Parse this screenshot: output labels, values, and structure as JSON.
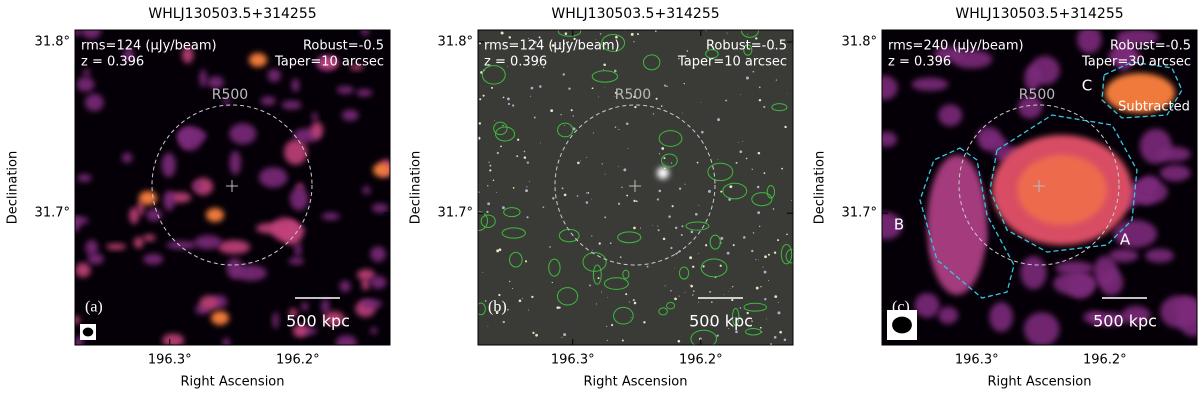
{
  "chart_data": [
    {
      "type": "image",
      "title": "WHLJ130503.5+314255",
      "xlabel": "Right Ascension",
      "ylabel": "Declination",
      "xlim": [
        196.374,
        196.128
      ],
      "ylim": [
        31.623,
        31.807
      ],
      "xticks": [
        {
          "value": 196.3,
          "label": "196.3°"
        },
        {
          "value": 196.2,
          "label": "196.2°"
        }
      ],
      "yticks": [
        {
          "value": 31.7,
          "label": "31.7°"
        },
        {
          "value": 31.8,
          "label": "31.8°"
        }
      ],
      "annotations": {
        "rms": "rms=124 (μJy/beam)",
        "redshift": "z = 0.396",
        "robust": "Robust=-0.5",
        "taper": "Taper=10 arcsec",
        "r500": "R500",
        "panel": "(a)",
        "scale": "500 kpc"
      }
    },
    {
      "type": "image",
      "title": "WHLJ130503.5+314255",
      "xlabel": "Right Ascension",
      "ylabel": "Declination",
      "xlim": [
        196.374,
        196.128
      ],
      "ylim": [
        31.623,
        31.807
      ],
      "xticks": [
        {
          "value": 196.3,
          "label": "196.3°"
        },
        {
          "value": 196.2,
          "label": "196.2°"
        }
      ],
      "yticks": [
        {
          "value": 31.7,
          "label": "31.7°"
        },
        {
          "value": 31.8,
          "label": "31.8°"
        }
      ],
      "annotations": {
        "rms": "rms=124 (μJy/beam)",
        "redshift": "z = 0.396",
        "robust": "Robust=-0.5",
        "taper": "Taper=10 arcsec",
        "r500": "R500",
        "panel": "(b)",
        "scale": "500 kpc"
      }
    },
    {
      "type": "image",
      "title": "WHLJ130503.5+314255",
      "xlabel": "Right Ascension",
      "ylabel": "Declination",
      "xlim": [
        196.374,
        196.128
      ],
      "ylim": [
        31.623,
        31.807
      ],
      "xticks": [
        {
          "value": 196.3,
          "label": "196.3°"
        },
        {
          "value": 196.2,
          "label": "196.2°"
        }
      ],
      "yticks": [
        {
          "value": 31.7,
          "label": "31.7°"
        },
        {
          "value": 31.8,
          "label": "31.8°"
        }
      ],
      "annotations": {
        "rms": "rms=240 (μJy/beam)",
        "redshift": "z = 0.396",
        "robust": "Robust=-0.5",
        "taper": "Taper=30 arcsec",
        "r500": "R500",
        "panel": "(c)",
        "scale": "500 kpc",
        "region_c": "C",
        "subtracted": "Subtracted",
        "region_a": "A",
        "region_b": "B"
      }
    }
  ]
}
